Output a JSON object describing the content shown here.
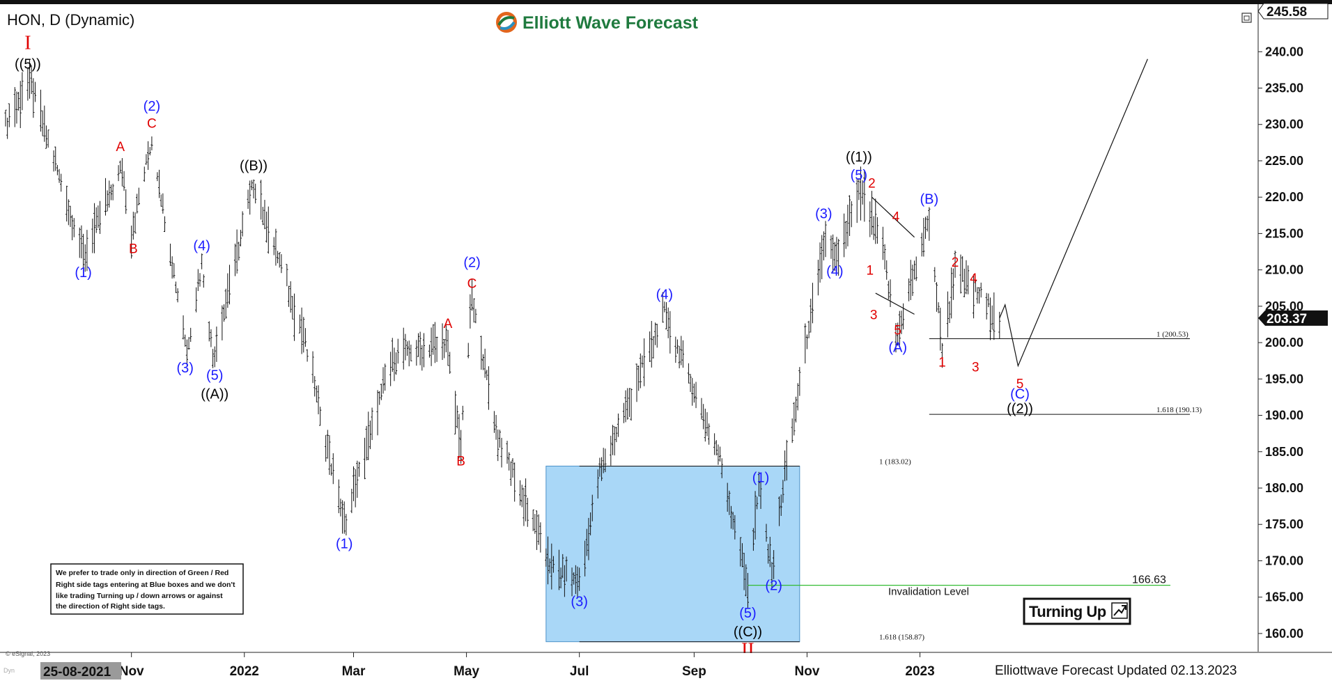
{
  "header": {
    "symbol_label": "HON, D (Dynamic)",
    "brand_name": "Elliott Wave Forecast",
    "brand_color": "#1f7a3e"
  },
  "footer": {
    "updated_text": "Elliottwave Forecast Updated 02.13.2023",
    "copyright": "© eSignal, 2023",
    "start_date_badge": "25-08-2021"
  },
  "note_box": {
    "lines": [
      "We prefer to trade only in direction of Green / Red",
      "Right side tags entering at Blue boxes and we don't",
      "like trading Turning up / down arrows or against",
      "the direction of Right side tags."
    ]
  },
  "turning_badge": {
    "label": "Turning Up"
  },
  "colors": {
    "price_bars": "#111111",
    "blue_box": "#a9d7f7",
    "blue_box_border": "#4a90c8",
    "label_blue": "#1a1aff",
    "label_red": "#e00000",
    "label_black": "#000000",
    "invalidation_line": "#33bb33",
    "current_price_bg": "#111111"
  },
  "chart_data": {
    "type": "ohlc",
    "title": "HON, D (Dynamic)",
    "timeframe": "Daily",
    "ylim": [
      157.5,
      245.58
    ],
    "y_ticks": [
      160,
      165,
      170,
      175,
      180,
      185,
      190,
      195,
      200,
      205,
      210,
      215,
      220,
      225,
      230,
      235,
      240
    ],
    "x_ticks": [
      "Nov",
      "2022",
      "Mar",
      "May",
      "Jul",
      "Sep",
      "Nov",
      "2023"
    ],
    "top_price_label": "245.58",
    "current_price": "203.37",
    "price_path": [
      {
        "date": "2021-08-25",
        "price": 230
      },
      {
        "date": "2021-09-07",
        "price": 236
      },
      {
        "date": "2021-10-06",
        "price": 212
      },
      {
        "date": "2021-10-27",
        "price": 224
      },
      {
        "date": "2021-11-01",
        "price": 215
      },
      {
        "date": "2021-11-12",
        "price": 228
      },
      {
        "date": "2021-12-01",
        "price": 199
      },
      {
        "date": "2021-12-09",
        "price": 211
      },
      {
        "date": "2021-12-15",
        "price": 198
      },
      {
        "date": "2022-01-06",
        "price": 222
      },
      {
        "date": "2022-02-02",
        "price": 201
      },
      {
        "date": "2022-02-24",
        "price": 175
      },
      {
        "date": "2022-03-22",
        "price": 198
      },
      {
        "date": "2022-04-20",
        "price": 200
      },
      {
        "date": "2022-04-28",
        "price": 186
      },
      {
        "date": "2022-05-04",
        "price": 206
      },
      {
        "date": "2022-05-18",
        "price": 187
      },
      {
        "date": "2022-06-16",
        "price": 169
      },
      {
        "date": "2022-07-01",
        "price": 167
      },
      {
        "date": "2022-07-12",
        "price": 182
      },
      {
        "date": "2022-08-16",
        "price": 204
      },
      {
        "date": "2022-09-15",
        "price": 184
      },
      {
        "date": "2022-09-30",
        "price": 166.6
      },
      {
        "date": "2022-10-06",
        "price": 180
      },
      {
        "date": "2022-10-13",
        "price": 168.5
      },
      {
        "date": "2022-10-20",
        "price": 182
      },
      {
        "date": "2022-11-10",
        "price": 214
      },
      {
        "date": "2022-11-16",
        "price": 211
      },
      {
        "date": "2022-11-30",
        "price": 220.8
      },
      {
        "date": "2022-12-12",
        "price": 213
      },
      {
        "date": "2022-12-19",
        "price": 200.5
      },
      {
        "date": "2023-01-06",
        "price": 217
      },
      {
        "date": "2023-01-13",
        "price": 199
      },
      {
        "date": "2023-01-20",
        "price": 210
      },
      {
        "date": "2023-02-13",
        "price": 203.37
      }
    ],
    "blue_box": {
      "start": "2022-06-13",
      "end": "2022-10-28",
      "price_low": 158.87,
      "price_high": 183.02
    },
    "fib_levels": [
      {
        "label": "1 (183.02)",
        "price": 183.02
      },
      {
        "label": "1.618 (158.87)",
        "price": 158.87
      },
      {
        "label": "1 (200.53)",
        "price": 200.53
      },
      {
        "label": "1.618 (190.13)",
        "price": 190.13
      }
    ],
    "invalidation": {
      "label": "Invalidation Level",
      "price": 166.63,
      "price_label": "166.63"
    },
    "projection_path": [
      {
        "date": "2023-02-13",
        "price": 203.37
      },
      {
        "date": "2023-02-16",
        "price": 205.2
      },
      {
        "date": "2023-02-23",
        "price": 196.8
      },
      {
        "date": "2023-05-04",
        "price": 239
      }
    ],
    "corrective_channel": [
      [
        {
          "date": "2022-12-06",
          "price": 220
        },
        {
          "date": "2022-12-29",
          "price": 214.5
        }
      ],
      [
        {
          "date": "2022-12-08",
          "price": 206.8
        },
        {
          "date": "2022-12-29",
          "price": 203.9
        }
      ]
    ],
    "wave_labels": [
      {
        "text": "I",
        "color": "red",
        "date": "2021-09-06",
        "price": 241,
        "size": "xl"
      },
      {
        "text": "((5))",
        "color": "black",
        "date": "2021-09-06",
        "price": 238.2
      },
      {
        "text": "(1)",
        "color": "blue",
        "date": "2021-10-06",
        "price": 209.5
      },
      {
        "text": "A",
        "color": "red",
        "date": "2021-10-26",
        "price": 226.8
      },
      {
        "text": "B",
        "color": "red",
        "date": "2021-11-02",
        "price": 212.8
      },
      {
        "text": "(2)",
        "color": "blue",
        "date": "2021-11-12",
        "price": 232.4
      },
      {
        "text": "C",
        "color": "red",
        "date": "2021-11-12",
        "price": 230
      },
      {
        "text": "((B))",
        "color": "black",
        "date": "2022-01-06",
        "price": 224.2
      },
      {
        "text": "(4)",
        "color": "blue",
        "date": "2021-12-09",
        "price": 213.2
      },
      {
        "text": "(3)",
        "color": "blue",
        "date": "2021-11-30",
        "price": 196.4
      },
      {
        "text": "(5)",
        "color": "blue",
        "date": "2021-12-16",
        "price": 195.4
      },
      {
        "text": "((A))",
        "color": "black",
        "date": "2021-12-16",
        "price": 192.8
      },
      {
        "text": "(1)",
        "color": "blue",
        "date": "2022-02-24",
        "price": 172.2
      },
      {
        "text": "(2)",
        "color": "blue",
        "date": "2022-05-04",
        "price": 210.9
      },
      {
        "text": "C",
        "color": "red",
        "date": "2022-05-04",
        "price": 208
      },
      {
        "text": "A",
        "color": "red",
        "date": "2022-04-21",
        "price": 202.5
      },
      {
        "text": "B",
        "color": "red",
        "date": "2022-04-28",
        "price": 183.6
      },
      {
        "text": "(4)",
        "color": "blue",
        "date": "2022-08-16",
        "price": 206.5
      },
      {
        "text": "(3)",
        "color": "blue",
        "date": "2022-07-01",
        "price": 164.3
      },
      {
        "text": "(1)",
        "color": "blue",
        "date": "2022-10-07",
        "price": 181.3
      },
      {
        "text": "(2)",
        "color": "blue",
        "date": "2022-10-14",
        "price": 166.5
      },
      {
        "text": "(5)",
        "color": "blue",
        "date": "2022-09-30",
        "price": 162.7
      },
      {
        "text": "((C))",
        "color": "black",
        "date": "2022-09-30",
        "price": 160.1
      },
      {
        "text": "II",
        "color": "red",
        "date": "2022-09-30",
        "price": 157.5,
        "size": "xl"
      },
      {
        "text": "((1))",
        "color": "black",
        "date": "2022-11-29",
        "price": 225.4
      },
      {
        "text": "(5)",
        "color": "blue",
        "date": "2022-11-29",
        "price": 222.9
      },
      {
        "text": "(3)",
        "color": "blue",
        "date": "2022-11-10",
        "price": 217.6
      },
      {
        "text": "(4)",
        "color": "blue",
        "date": "2022-11-16",
        "price": 209.7
      },
      {
        "text": "2",
        "color": "red",
        "date": "2022-12-06",
        "price": 221.8
      },
      {
        "text": "4",
        "color": "red",
        "date": "2022-12-19",
        "price": 217.2
      },
      {
        "text": "1",
        "color": "red",
        "date": "2022-12-05",
        "price": 209.8
      },
      {
        "text": "3",
        "color": "red",
        "date": "2022-12-07",
        "price": 203.7
      },
      {
        "text": "5",
        "color": "red",
        "date": "2022-12-20",
        "price": 201.6
      },
      {
        "text": "(A)",
        "color": "blue",
        "date": "2022-12-20",
        "price": 199.2
      },
      {
        "text": "(B)",
        "color": "blue",
        "date": "2023-01-06",
        "price": 219.6
      },
      {
        "text": "2",
        "color": "red",
        "date": "2023-01-20",
        "price": 210.9
      },
      {
        "text": "4",
        "color": "red",
        "date": "2023-01-30",
        "price": 208.7
      },
      {
        "text": "1",
        "color": "red",
        "date": "2023-01-13",
        "price": 197.2
      },
      {
        "text": "3",
        "color": "red",
        "date": "2023-01-31",
        "price": 196.5
      },
      {
        "text": "5",
        "color": "red",
        "date": "2023-02-24",
        "price": 194.2
      },
      {
        "text": "(C)",
        "color": "blue",
        "date": "2023-02-24",
        "price": 192.8
      },
      {
        "text": "((2))",
        "color": "black",
        "date": "2023-02-24",
        "price": 190.8
      }
    ]
  }
}
